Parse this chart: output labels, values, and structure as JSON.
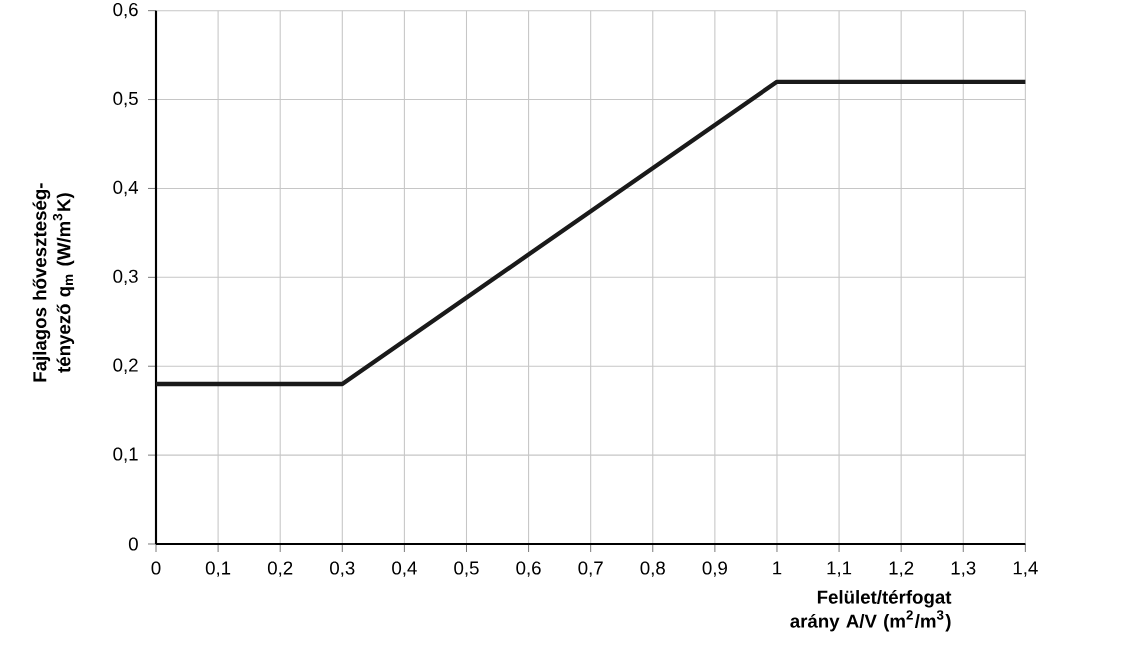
{
  "chart_data": {
    "type": "line",
    "xlabel": "Felület/térfogat arány A/V (m$^{2}$/m$^{3}$)",
    "ylabel": "Fajlagos hőveszteség-tényező q$_{m}$ (W/m$^{3}$K)",
    "x": [
      0,
      0.3,
      1,
      1.4
    ],
    "series": [
      {
        "color": "#1a1a1a",
        "values": [
          0.18,
          0.18,
          0.52,
          0.52
        ]
      }
    ],
    "xlim": [
      0,
      1.4
    ],
    "ylim": [
      0,
      0.6
    ],
    "xticks": [
      0,
      {
        "value": 0.1,
        "label": "0,1"
      },
      {
        "value": 0.2,
        "label": "0,2"
      },
      {
        "value": 0.3,
        "label": "0,3"
      },
      {
        "value": 0.4,
        "label": "0,4"
      },
      {
        "value": 0.5,
        "label": "0,5"
      },
      {
        "value": 0.6,
        "label": "0,6"
      },
      {
        "value": 0.7,
        "label": "0,7"
      },
      {
        "value": 0.8,
        "label": "0,8"
      },
      {
        "value": 0.9,
        "label": "0,9"
      },
      1,
      {
        "value": 1.1,
        "label": "1,1"
      },
      {
        "value": 1.2,
        "label": "1,2"
      },
      {
        "value": 1.3,
        "label": "1,3"
      },
      {
        "value": 1.4,
        "label": "1,4"
      }
    ],
    "yticks": [
      0,
      {
        "value": 0.1,
        "label": "0,1"
      },
      {
        "value": 0.2,
        "label": "0,2"
      },
      {
        "value": 0.3,
        "label": "0,3"
      },
      {
        "value": 0.4,
        "label": "0,4"
      },
      {
        "value": 0.5,
        "label": "0,5"
      },
      {
        "value": 0.6,
        "label": "0,6"
      }
    ],
    "grid": true,
    "line_style": "solid"
  }
}
